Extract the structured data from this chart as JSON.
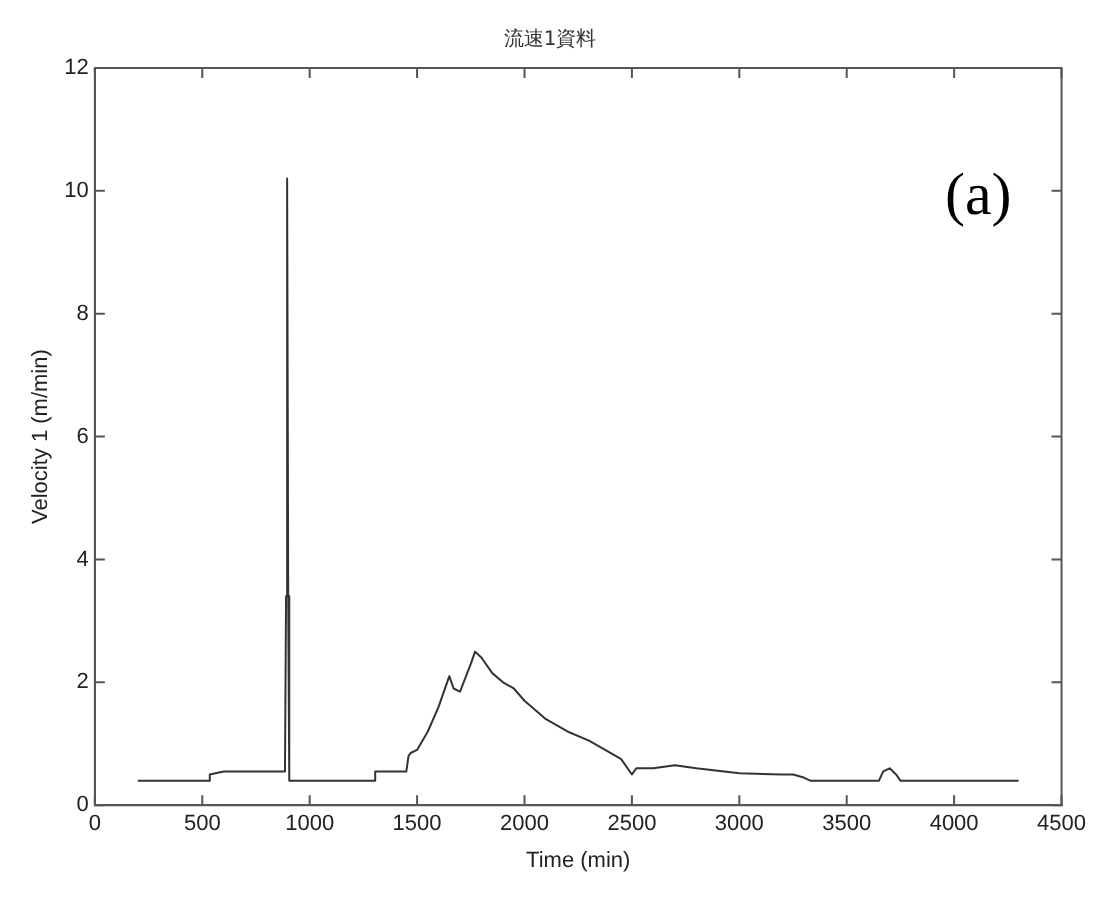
{
  "chart_data": {
    "type": "line",
    "title": "流速1資料",
    "xlabel": "Time (min)",
    "ylabel": "Velocity 1 (m/min)",
    "annotations": [
      "(a)"
    ],
    "x": [
      200,
      530,
      535,
      600,
      700,
      800,
      885,
      890,
      895,
      900,
      905,
      950,
      1000,
      1300,
      1305,
      1450,
      1460,
      1470,
      1500,
      1550,
      1600,
      1650,
      1670,
      1700,
      1750,
      1770,
      1800,
      1850,
      1900,
      1950,
      2000,
      2100,
      2200,
      2300,
      2400,
      2450,
      2500,
      2520,
      2600,
      2700,
      2800,
      3000,
      3200,
      3250,
      3300,
      3330,
      3650,
      3670,
      3700,
      3730,
      3750,
      4300
    ],
    "series": [
      {
        "color": "#333333",
        "values": [
          0.4,
          0.4,
          0.5,
          0.55,
          0.55,
          0.55,
          0.55,
          3.4,
          10.2,
          3.4,
          0.4,
          0.4,
          0.4,
          0.4,
          0.55,
          0.55,
          0.8,
          0.85,
          0.9,
          1.2,
          1.6,
          2.1,
          1.9,
          1.85,
          2.3,
          2.5,
          2.4,
          2.15,
          2.0,
          1.9,
          1.7,
          1.4,
          1.2,
          1.05,
          0.85,
          0.75,
          0.5,
          0.6,
          0.6,
          0.65,
          0.6,
          0.52,
          0.5,
          0.5,
          0.45,
          0.4,
          0.4,
          0.55,
          0.6,
          0.5,
          0.4,
          0.4
        ]
      }
    ],
    "xlim": [
      0,
      4500
    ],
    "xticks": [
      0,
      500,
      1000,
      1500,
      2000,
      2500,
      3000,
      3500,
      4000,
      4500
    ],
    "ylim": [
      0,
      12
    ],
    "yticks": [
      0,
      2,
      4,
      6,
      8,
      10,
      12
    ],
    "grid": false,
    "legend": false,
    "marker": "none",
    "line_style": "solid"
  }
}
